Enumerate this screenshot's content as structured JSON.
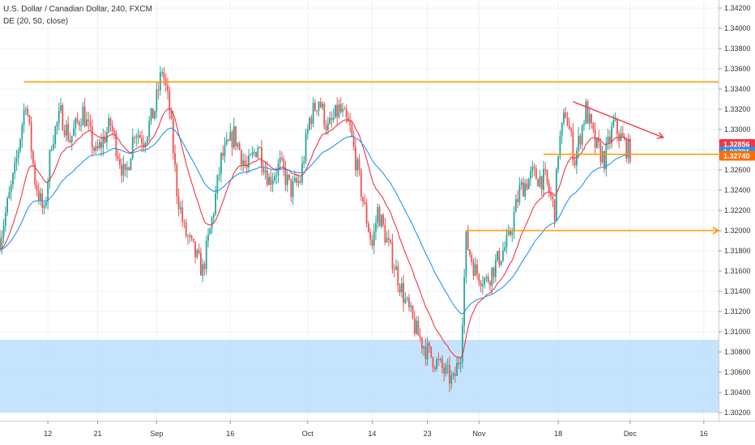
{
  "chart_data": {
    "type": "candlestick",
    "symbol_line": "U.S. Dollar / Canadian Dollar, 240, FXCM",
    "indicator_line": "DE (20, 50, close)",
    "y_ticks": [
      "1.34200",
      "1.34000",
      "1.33800",
      "1.33600",
      "1.33400",
      "1.33200",
      "1.33000",
      "1.32800",
      "1.32600",
      "1.32400",
      "1.32200",
      "1.32000",
      "1.31800",
      "1.31600",
      "1.31400",
      "1.31200",
      "1.31000",
      "1.30800",
      "1.30600",
      "1.30400",
      "1.30200"
    ],
    "y_tick_values": [
      1.342,
      1.34,
      1.338,
      1.336,
      1.334,
      1.332,
      1.33,
      1.328,
      1.326,
      1.324,
      1.322,
      1.32,
      1.318,
      1.316,
      1.314,
      1.312,
      1.31,
      1.308,
      1.306,
      1.304,
      1.302
    ],
    "ylim": [
      1.3012,
      1.3428
    ],
    "x_ticks": [
      "12",
      "21",
      "Sep",
      "16",
      "Oct",
      "14",
      "23",
      "Nov",
      "18",
      "Dec",
      "16"
    ],
    "x_tick_index": [
      26,
      53,
      85,
      125,
      167,
      202,
      232,
      260,
      303,
      342,
      382
    ],
    "x_range": [
      0,
      390
    ],
    "price_badges": [
      {
        "label": "1.32856",
        "value": 1.32856,
        "color": "#f23645"
      },
      {
        "label": "1.32781",
        "value": 1.32781,
        "color": "#2196f3"
      },
      {
        "label": "1.32740",
        "value": 1.3274,
        "color": "#ff6d00"
      }
    ],
    "series": [
      {
        "kind": "ohlc",
        "up_color": "#26a69a",
        "down_color": "#ef5350"
      },
      {
        "kind": "ema",
        "period": 20,
        "color": "#f23645"
      },
      {
        "kind": "ema",
        "period": 50,
        "color": "#2196f3"
      }
    ],
    "path_anchors": [
      [
        0,
        1.3192
      ],
      [
        8,
        1.3258
      ],
      [
        14,
        1.333
      ],
      [
        19,
        1.325
      ],
      [
        24,
        1.3215
      ],
      [
        28,
        1.329
      ],
      [
        33,
        1.3315
      ],
      [
        38,
        1.329
      ],
      [
        45,
        1.3318
      ],
      [
        52,
        1.3275
      ],
      [
        60,
        1.3305
      ],
      [
        68,
        1.325
      ],
      [
        73,
        1.33
      ],
      [
        78,
        1.329
      ],
      [
        84,
        1.332
      ],
      [
        88,
        1.336
      ],
      [
        92,
        1.332
      ],
      [
        96,
        1.324
      ],
      [
        100,
        1.32
      ],
      [
        105,
        1.318
      ],
      [
        110,
        1.316
      ],
      [
        115,
        1.321
      ],
      [
        120,
        1.327
      ],
      [
        127,
        1.3295
      ],
      [
        134,
        1.326
      ],
      [
        140,
        1.3285
      ],
      [
        146,
        1.325
      ],
      [
        152,
        1.3265
      ],
      [
        158,
        1.324
      ],
      [
        163,
        1.325
      ],
      [
        168,
        1.331
      ],
      [
        173,
        1.333
      ],
      [
        178,
        1.33
      ],
      [
        184,
        1.332
      ],
      [
        190,
        1.33
      ],
      [
        194,
        1.326
      ],
      [
        198,
        1.322
      ],
      [
        202,
        1.3185
      ],
      [
        205,
        1.322
      ],
      [
        210,
        1.319
      ],
      [
        215,
        1.316
      ],
      [
        220,
        1.313
      ],
      [
        226,
        1.31
      ],
      [
        232,
        1.308
      ],
      [
        240,
        1.3063
      ],
      [
        246,
        1.305
      ],
      [
        250,
        1.308
      ],
      [
        253,
        1.319
      ],
      [
        258,
        1.316
      ],
      [
        264,
        1.315
      ],
      [
        270,
        1.317
      ],
      [
        276,
        1.319
      ],
      [
        282,
        1.324
      ],
      [
        289,
        1.3255
      ],
      [
        296,
        1.325
      ],
      [
        301,
        1.322
      ],
      [
        303,
        1.328
      ],
      [
        307,
        1.3318
      ],
      [
        312,
        1.327
      ],
      [
        318,
        1.332
      ],
      [
        323,
        1.3285
      ],
      [
        328,
        1.327
      ],
      [
        333,
        1.3305
      ],
      [
        340,
        1.3282
      ],
      [
        342,
        1.3278
      ]
    ],
    "annotations": [
      {
        "type": "hline",
        "color": "#ff9800",
        "x_from": 13,
        "x_to": 390,
        "y": 1.3347
      },
      {
        "type": "hline",
        "color": "#ff9800",
        "x_from": 295,
        "x_to": 390,
        "y": 1.32755
      },
      {
        "type": "ray",
        "color": "#ff9800",
        "x_from": 253,
        "x_to": 390,
        "y": 1.32
      },
      {
        "type": "trendline",
        "color": "#f23645",
        "x_from": 311,
        "y_from": 1.33275,
        "x_to": 360,
        "y_to": 1.3292
      },
      {
        "type": "zone",
        "color": "#bbdefb",
        "x_from": 0,
        "x_to": 390,
        "y_from": 1.302,
        "y_to": 1.3092
      }
    ]
  }
}
